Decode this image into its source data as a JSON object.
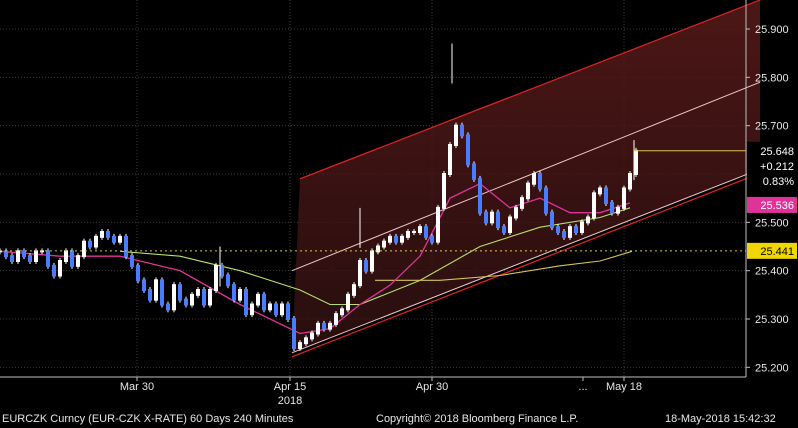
{
  "chart_data": {
    "type": "line",
    "series": [
      {
        "values": [
          [
            0,
            25.44
          ],
          [
            6,
            25.43
          ],
          [
            12,
            25.42
          ],
          [
            18,
            25.44
          ],
          [
            24,
            25.43
          ],
          [
            30,
            25.42
          ],
          [
            36,
            25.44
          ],
          [
            42,
            25.44
          ],
          [
            48,
            25.41
          ],
          [
            54,
            25.39
          ],
          [
            60,
            25.42
          ],
          [
            66,
            25.44
          ],
          [
            72,
            25.41
          ],
          [
            78,
            25.43
          ],
          [
            84,
            25.46
          ],
          [
            90,
            25.45
          ],
          [
            96,
            25.47
          ],
          [
            102,
            25.48
          ],
          [
            108,
            25.47
          ],
          [
            114,
            25.46
          ],
          [
            120,
            25.47
          ],
          [
            126,
            25.43
          ],
          [
            132,
            25.41
          ],
          [
            138,
            25.38
          ],
          [
            144,
            25.36
          ],
          [
            150,
            25.34
          ],
          [
            156,
            25.38
          ],
          [
            162,
            25.33
          ],
          [
            168,
            25.32
          ],
          [
            174,
            25.37
          ],
          [
            180,
            25.34
          ],
          [
            186,
            25.33
          ],
          [
            192,
            25.35
          ],
          [
            198,
            25.36
          ],
          [
            204,
            25.33
          ],
          [
            210,
            25.36
          ],
          [
            216,
            25.41
          ],
          [
            222,
            25.39
          ],
          [
            228,
            25.37
          ],
          [
            234,
            25.34
          ],
          [
            240,
            25.36
          ],
          [
            246,
            25.31
          ],
          [
            252,
            25.33
          ],
          [
            258,
            25.35
          ],
          [
            264,
            25.32
          ],
          [
            270,
            25.33
          ],
          [
            276,
            25.31
          ],
          [
            282,
            25.33
          ],
          [
            288,
            25.3
          ],
          [
            294,
            25.24
          ],
          [
            300,
            25.25
          ],
          [
            306,
            25.26
          ],
          [
            312,
            25.27
          ],
          [
            318,
            25.29
          ],
          [
            324,
            25.28
          ],
          [
            330,
            25.29
          ],
          [
            336,
            25.31
          ],
          [
            342,
            25.32
          ],
          [
            348,
            25.35
          ],
          [
            354,
            25.37
          ],
          [
            360,
            25.42
          ],
          [
            366,
            25.4
          ],
          [
            372,
            25.44
          ],
          [
            378,
            25.45
          ],
          [
            384,
            25.46
          ],
          [
            390,
            25.47
          ],
          [
            396,
            25.46
          ],
          [
            402,
            25.47
          ],
          [
            408,
            25.48
          ],
          [
            414,
            25.48
          ],
          [
            420,
            25.49
          ],
          [
            426,
            25.47
          ],
          [
            432,
            25.46
          ],
          [
            438,
            25.53
          ],
          [
            444,
            25.6
          ],
          [
            450,
            25.66
          ],
          [
            456,
            25.7
          ],
          [
            462,
            25.68
          ],
          [
            468,
            25.62
          ],
          [
            474,
            25.59
          ],
          [
            480,
            25.52
          ],
          [
            486,
            25.5
          ],
          [
            492,
            25.52
          ],
          [
            498,
            25.49
          ],
          [
            504,
            25.48
          ],
          [
            510,
            25.51
          ],
          [
            516,
            25.53
          ],
          [
            522,
            25.55
          ],
          [
            528,
            25.58
          ],
          [
            534,
            25.6
          ],
          [
            540,
            25.57
          ],
          [
            546,
            25.52
          ],
          [
            552,
            25.49
          ],
          [
            558,
            25.48
          ],
          [
            564,
            25.47
          ],
          [
            570,
            25.49
          ],
          [
            576,
            25.48
          ],
          [
            582,
            25.5
          ],
          [
            588,
            25.51
          ],
          [
            594,
            25.56
          ],
          [
            600,
            25.57
          ],
          [
            606,
            25.54
          ],
          [
            612,
            25.52
          ],
          [
            618,
            25.53
          ],
          [
            624,
            25.57
          ],
          [
            630,
            25.6
          ],
          [
            636,
            25.648
          ]
        ]
      }
    ],
    "highs": [
      {
        "x": 220,
        "y": 25.45
      },
      {
        "x": 360,
        "y": 25.53
      },
      {
        "x": 452,
        "y": 25.87
      },
      {
        "x": 634,
        "y": 25.67
      }
    ],
    "ma_short": [
      [
        0,
        25.44
      ],
      [
        60,
        25.43
      ],
      [
        120,
        25.43
      ],
      [
        180,
        25.4
      ],
      [
        240,
        25.33
      ],
      [
        300,
        25.27
      ],
      [
        330,
        25.28
      ],
      [
        360,
        25.33
      ],
      [
        390,
        25.37
      ],
      [
        420,
        25.43
      ],
      [
        450,
        25.55
      ],
      [
        480,
        25.58
      ],
      [
        510,
        25.53
      ],
      [
        540,
        25.55
      ],
      [
        570,
        25.52
      ],
      [
        600,
        25.52
      ],
      [
        630,
        25.54
      ]
    ],
    "ma_mid": [
      [
        120,
        25.44
      ],
      [
        180,
        25.43
      ],
      [
        240,
        25.4
      ],
      [
        300,
        25.36
      ],
      [
        330,
        25.33
      ],
      [
        360,
        25.33
      ],
      [
        420,
        25.38
      ],
      [
        480,
        25.45
      ],
      [
        540,
        25.49
      ],
      [
        600,
        25.51
      ],
      [
        630,
        25.53
      ]
    ],
    "ma_long": [
      [
        375,
        25.38
      ],
      [
        440,
        25.38
      ],
      [
        500,
        25.39
      ],
      [
        560,
        25.41
      ],
      [
        600,
        25.42
      ],
      [
        632,
        25.44
      ]
    ],
    "channel": {
      "upper": [
        [
          300,
          25.59
        ],
        [
          760,
          25.96
        ]
      ],
      "mid_hi": [
        [
          292,
          25.4
        ],
        [
          760,
          25.79
        ]
      ],
      "mid_lo": [
        [
          292,
          25.23
        ],
        [
          760,
          25.61
        ]
      ]
    },
    "hlines": [
      {
        "y": 25.648,
        "x0": 634,
        "color": "#d4c55a"
      },
      {
        "y": 25.441,
        "color": "#d4c55a",
        "dotted": true
      }
    ],
    "ylim": [
      25.18,
      25.96
    ],
    "xlim": [
      0,
      746
    ],
    "y_ticks": [
      "25.200",
      "25.300",
      "25.400",
      "25.500",
      "25.600",
      "25.700",
      "25.800",
      "25.900"
    ],
    "x_ticks": [
      {
        "label": "Mar 30",
        "x": 137
      },
      {
        "label": "Apr 15",
        "x": 290
      },
      {
        "label": "Apr 30",
        "x": 432
      },
      {
        "label": "...",
        "x": 583
      },
      {
        "label": "May 18",
        "x": 624
      }
    ],
    "year_label": "2018",
    "last_price_box": {
      "price": "25.648",
      "change": "+0.212",
      "pct": "0.83%"
    },
    "price_tags": [
      {
        "label": "25.536",
        "value": 25.536,
        "bg": "#e0339a",
        "fg": "#ffffff"
      },
      {
        "label": "25.441",
        "value": 25.441,
        "bg": "#f2d600",
        "fg": "#000000"
      }
    ],
    "grid": true,
    "colors": {
      "candle": "#4a7cff",
      "ma_short": "#e0339a",
      "ma_mid": "#b9e06a",
      "ma_long": "#d4c55a",
      "channel_upper": "#e32424",
      "channel_mid": "#f2c9c9",
      "channel_fill_top": "#5a1a1a",
      "channel_fill_bottom": "#3a1414"
    }
  },
  "footer": {
    "ticker": "EURCZK Curncy (EUR-CZK X-RATE) 60 Days 240 Minutes",
    "copyright": "Copyright© 2018 Bloomberg Finance L.P.",
    "timestamp": "18-May-2018 15:42:32"
  }
}
